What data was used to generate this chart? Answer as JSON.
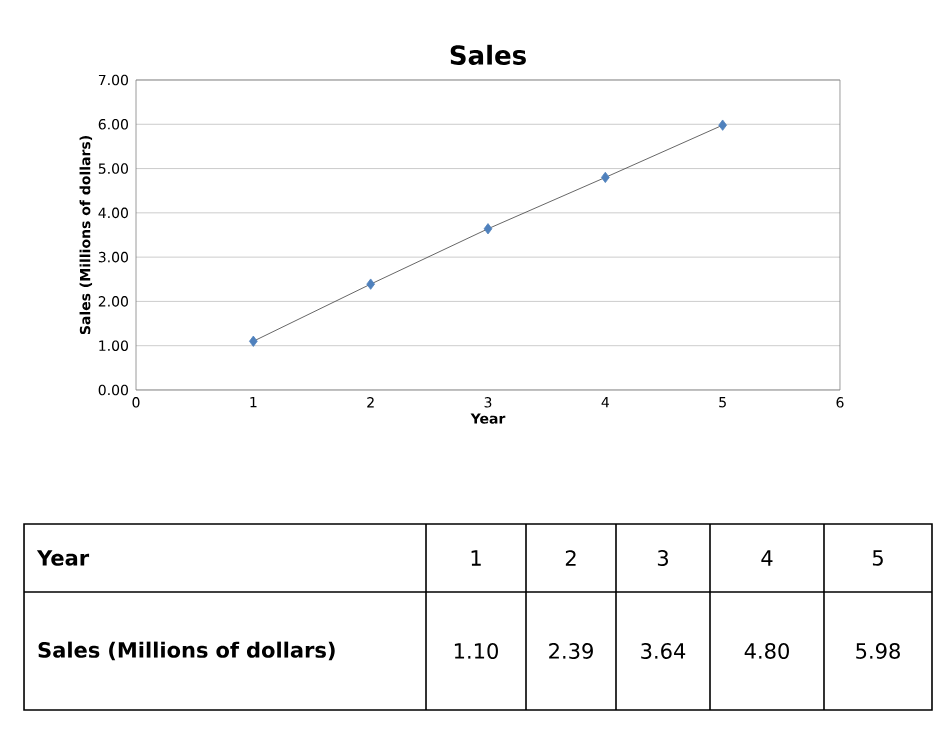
{
  "chart_data": {
    "type": "line",
    "title": "Sales",
    "xlabel": "Year",
    "ylabel": "Sales (Millions of dollars)",
    "x": [
      1,
      2,
      3,
      4,
      5
    ],
    "series": [
      {
        "color": "#4f81bd",
        "values": [
          1.1,
          2.39,
          3.64,
          4.8,
          5.98
        ]
      }
    ],
    "annotations": [
      "1",
      "2",
      "3",
      "4",
      "5",
      "1.10",
      "2.39",
      "3.64",
      "4.80",
      "5.98"
    ],
    "xlim": [
      0,
      6
    ],
    "xticks": [
      0,
      1,
      2,
      3,
      4,
      5,
      6
    ],
    "ylim": [
      0,
      7
    ],
    "yticks": [
      {
        "value": 0,
        "label": "0.00"
      },
      {
        "value": 1,
        "label": "1.00"
      },
      {
        "value": 2,
        "label": "2.00"
      },
      {
        "value": 3,
        "label": "3.00"
      },
      {
        "value": 4,
        "label": "4.00"
      },
      {
        "value": 5,
        "label": "5.00"
      },
      {
        "value": 6,
        "label": "6.00"
      },
      {
        "value": 7,
        "label": "7.00"
      }
    ],
    "grid": "y",
    "marker": "diamond",
    "line_style": "solid"
  }
}
